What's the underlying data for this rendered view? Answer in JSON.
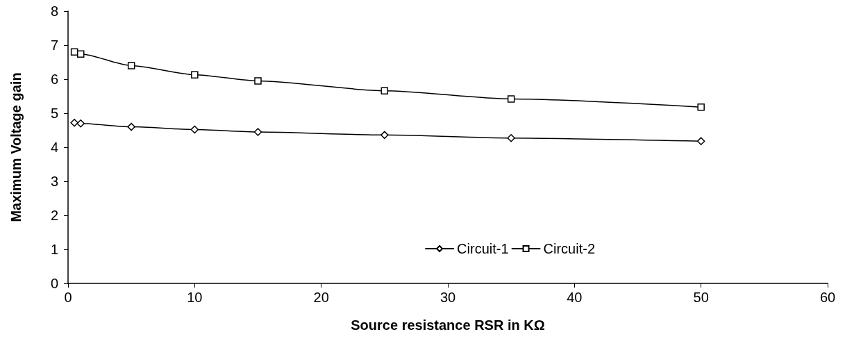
{
  "chart_data": {
    "type": "line",
    "xlabel": "Source resistance RSR in KΩ",
    "ylabel": "Maximum Voltage gain",
    "x": [
      0.5,
      1,
      5,
      10,
      15,
      25,
      35,
      50
    ],
    "series": [
      {
        "name": "Circuit-1",
        "color": "#000000",
        "marker": "diamond",
        "values": [
          4.72,
          4.7,
          4.6,
          4.52,
          4.45,
          4.36,
          4.27,
          4.18
        ]
      },
      {
        "name": "Circuit-2",
        "color": "#000000",
        "marker": "square",
        "values": [
          6.8,
          6.74,
          6.4,
          6.13,
          5.95,
          5.66,
          5.42,
          5.18
        ]
      }
    ],
    "xlim": [
      0,
      60
    ],
    "xticks": [
      0,
      10,
      20,
      30,
      40,
      50,
      60
    ],
    "ylim": [
      0,
      8
    ],
    "yticks": [
      0,
      1,
      2,
      3,
      4,
      5,
      6,
      7,
      8
    ],
    "grid": false,
    "legend": "bottom right",
    "line_style": "solid"
  }
}
